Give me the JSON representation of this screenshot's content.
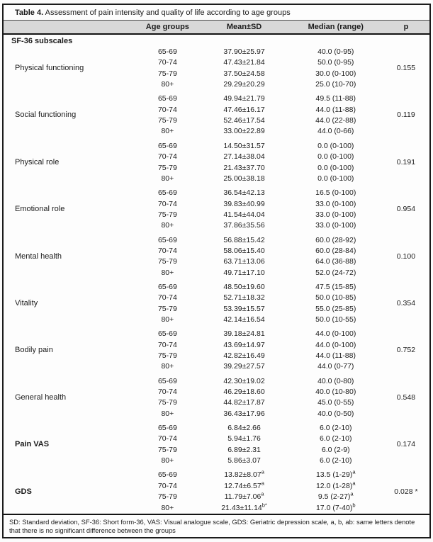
{
  "table": {
    "title_label": "Table 4.",
    "title_text": " Assessment of pain intensity and quality of life according to age groups",
    "columns": [
      "",
      "Age groups",
      "Mean±SD",
      "Median (range)",
      "p"
    ],
    "section_label": "SF-36 subscales",
    "groups": [
      {
        "label": "Physical functioning",
        "bold": false,
        "p": "0.155",
        "rows": [
          {
            "age": "65-69",
            "mean": "37.90±25.97",
            "median": "40.0 (0-95)"
          },
          {
            "age": "70-74",
            "mean": "47.43±21.84",
            "median": "50.0 (0-95)"
          },
          {
            "age": "75-79",
            "mean": "37.50±24.58",
            "median": "30.0 (0-100)"
          },
          {
            "age": "80+",
            "mean": "29.29±20.29",
            "median": "25.0 (10-70)"
          }
        ]
      },
      {
        "label": "Social functioning",
        "bold": false,
        "p": "0.119",
        "rows": [
          {
            "age": "65-69",
            "mean": "49.94±21.79",
            "median": "49.5 (11-88)"
          },
          {
            "age": "70-74",
            "mean": "47.46±16.17",
            "median": "44.0 (11-88)"
          },
          {
            "age": "75-79",
            "mean": "52.46±17.54",
            "median": "44.0 (22-88)"
          },
          {
            "age": "80+",
            "mean": "33.00±22.89",
            "median": "44.0 (0-66)"
          }
        ]
      },
      {
        "label": "Physical role",
        "bold": false,
        "p": "0.191",
        "rows": [
          {
            "age": "65-69",
            "mean": "14.50±31.57",
            "median": "0.0 (0-100)"
          },
          {
            "age": "70-74",
            "mean": "27.14±38.04",
            "median": "0.0 (0-100)"
          },
          {
            "age": "75-79",
            "mean": "21.43±37.70",
            "median": "0.0 (0-100)"
          },
          {
            "age": "80+",
            "mean": "25.00±38.18",
            "median": "0.0 (0-100)"
          }
        ]
      },
      {
        "label": "Emotional role",
        "bold": false,
        "p": "0.954",
        "rows": [
          {
            "age": "65-69",
            "mean": "36.54±42.13",
            "median": "16.5 (0-100)"
          },
          {
            "age": "70-74",
            "mean": "39.83±40.99",
            "median": "33.0 (0-100)"
          },
          {
            "age": "75-79",
            "mean": "41.54±44.04",
            "median": "33.0 (0-100)"
          },
          {
            "age": "80+",
            "mean": "37.86±35.56",
            "median": "33.0 (0-100)"
          }
        ]
      },
      {
        "label": "Mental health",
        "bold": false,
        "p": "0.100",
        "rows": [
          {
            "age": "65-69",
            "mean": "56.88±15.42",
            "median": "60.0 (28-92)"
          },
          {
            "age": "70-74",
            "mean": "58.06±15.40",
            "median": "60.0 (28-84)"
          },
          {
            "age": "75-79",
            "mean": "63.71±13.06",
            "median": "64.0 (36-88)"
          },
          {
            "age": "80+",
            "mean": "49.71±17.10",
            "median": "52.0 (24-72)"
          }
        ]
      },
      {
        "label": "Vitality",
        "bold": false,
        "p": "0.354",
        "rows": [
          {
            "age": "65-69",
            "mean": "48.50±19.60",
            "median": "47.5 (15-85)"
          },
          {
            "age": "70-74",
            "mean": "52.71±18.32",
            "median": "50.0 (10-85)"
          },
          {
            "age": "75-79",
            "mean": "53.39±15.57",
            "median": "55.0 (25-85)"
          },
          {
            "age": "80+",
            "mean": "42.14±16.54",
            "median": "50.0 (10-55)"
          }
        ]
      },
      {
        "label": "Bodily pain",
        "bold": false,
        "p": "0.752",
        "rows": [
          {
            "age": "65-69",
            "mean": "39.18±24.81",
            "median": "44.0 (0-100)"
          },
          {
            "age": "70-74",
            "mean": "43.69±14.97",
            "median": "44.0 (0-100)"
          },
          {
            "age": "75-79",
            "mean": "42.82±16.49",
            "median": "44.0 (11-88)"
          },
          {
            "age": "80+",
            "mean": "39.29±27.57",
            "median": "44.0 (0-77)"
          }
        ]
      },
      {
        "label": "General health",
        "bold": false,
        "p": "0.548",
        "rows": [
          {
            "age": "65-69",
            "mean": "42.30±19.02",
            "median": "40.0 (0-80)"
          },
          {
            "age": "70-74",
            "mean": "46.29±18.60",
            "median": "40.0 (10-80)"
          },
          {
            "age": "75-79",
            "mean": "44.82±17.87",
            "median": "45.0 (0-55)"
          },
          {
            "age": "80+",
            "mean": "36.43±17.96",
            "median": "40.0 (0-50)"
          }
        ]
      },
      {
        "label": "Pain VAS",
        "bold": true,
        "p": "0.174",
        "rows": [
          {
            "age": "65-69",
            "mean": "6.84±2.66",
            "median": "6.0 (2-10)"
          },
          {
            "age": "70-74",
            "mean": "5.94±1.76",
            "median": "6.0 (2-10)"
          },
          {
            "age": "75-79",
            "mean": "6.89±2.31",
            "median": "6.0 (2-9)"
          },
          {
            "age": "80+",
            "mean": "5.86±3.07",
            "median": "6.0 (2-10)"
          }
        ]
      },
      {
        "label": "GDS",
        "bold": true,
        "p": "0.028 *",
        "rows": [
          {
            "age": "65-69",
            "mean": "13.82±8.07",
            "mean_sup": "a",
            "median": "13.5 (1-29)",
            "median_sup": "a"
          },
          {
            "age": "70-74",
            "mean": "12.74±6.57",
            "mean_sup": "a",
            "median": "12.0 (1-28)",
            "median_sup": "a"
          },
          {
            "age": "75-79",
            "mean": "11.79±7.06",
            "mean_sup": "a",
            "median": "9.5 (2-27)",
            "median_sup": "a"
          },
          {
            "age": "80+",
            "mean": "21.43±11.14",
            "mean_sup": "b*",
            "median": "17.0 (7-40)",
            "median_sup": "b"
          }
        ]
      }
    ],
    "footnote": "SD: Standard deviation, SF-36: Short form-36, VAS: Visual analogue scale, GDS: Geriatric depression scale, a, b, ab: same letters denote that there is no significant difference between the groups"
  }
}
